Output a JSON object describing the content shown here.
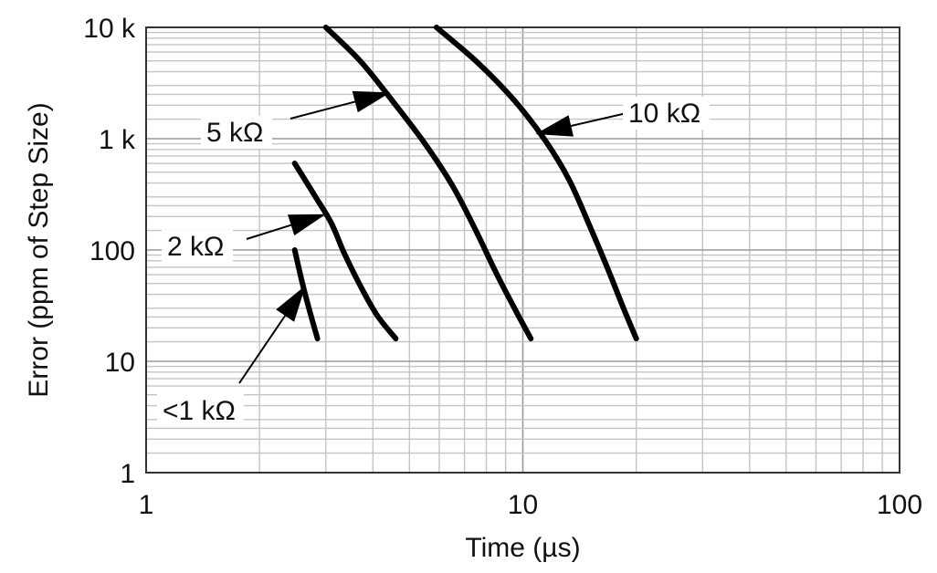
{
  "chart_data": {
    "type": "line",
    "title": "",
    "xlabel": "Time (µs)",
    "ylabel": "Error (ppm of Step Size)",
    "xscale": "log",
    "yscale": "log",
    "xlim": [
      1,
      100
    ],
    "ylim": [
      1,
      10000
    ],
    "grid": true,
    "x_ticks": [
      {
        "value": 1,
        "label": "1"
      },
      {
        "value": 10,
        "label": "10"
      },
      {
        "value": 100,
        "label": "100"
      }
    ],
    "y_ticks": [
      {
        "value": 1,
        "label": "1"
      },
      {
        "value": 10,
        "label": "10"
      },
      {
        "value": 100,
        "label": "100"
      },
      {
        "value": 1000,
        "label": "1 k"
      },
      {
        "value": 10000,
        "label": "10 k"
      }
    ],
    "series": [
      {
        "name": "<1 kΩ",
        "points": [
          [
            2.48,
            100
          ],
          [
            2.6,
            50
          ],
          [
            2.72,
            28
          ],
          [
            2.85,
            16
          ]
        ]
      },
      {
        "name": "2 kΩ",
        "points": [
          [
            2.48,
            600
          ],
          [
            2.8,
            310
          ],
          [
            3.1,
            175
          ],
          [
            3.35,
            95
          ],
          [
            3.7,
            48
          ],
          [
            4.1,
            26
          ],
          [
            4.6,
            16
          ]
        ]
      },
      {
        "name": "5 kΩ",
        "points": [
          [
            3.0,
            10000
          ],
          [
            3.7,
            5000
          ],
          [
            4.5,
            2200
          ],
          [
            5.5,
            900
          ],
          [
            6.5,
            380
          ],
          [
            7.5,
            150
          ],
          [
            8.5,
            62
          ],
          [
            9.5,
            30
          ],
          [
            10.5,
            16
          ]
        ]
      },
      {
        "name": "10 kΩ",
        "points": [
          [
            5.9,
            10000
          ],
          [
            7.6,
            4800
          ],
          [
            9.5,
            2200
          ],
          [
            11.5,
            950
          ],
          [
            13.3,
            420
          ],
          [
            15.1,
            160
          ],
          [
            16.8,
            68
          ],
          [
            18.5,
            30
          ],
          [
            20,
            16
          ]
        ]
      }
    ],
    "annotations": [
      {
        "series": 3,
        "text": "10 kΩ",
        "at": [
          10.8,
          1100
        ]
      },
      {
        "series": 2,
        "text": "5 kΩ",
        "at": [
          4.45,
          2600
        ]
      },
      {
        "series": 1,
        "text": "2 kΩ",
        "at": [
          3.0,
          210
        ]
      },
      {
        "series": 0,
        "text": "<1 kΩ",
        "at": [
          2.65,
          48
        ]
      }
    ]
  }
}
